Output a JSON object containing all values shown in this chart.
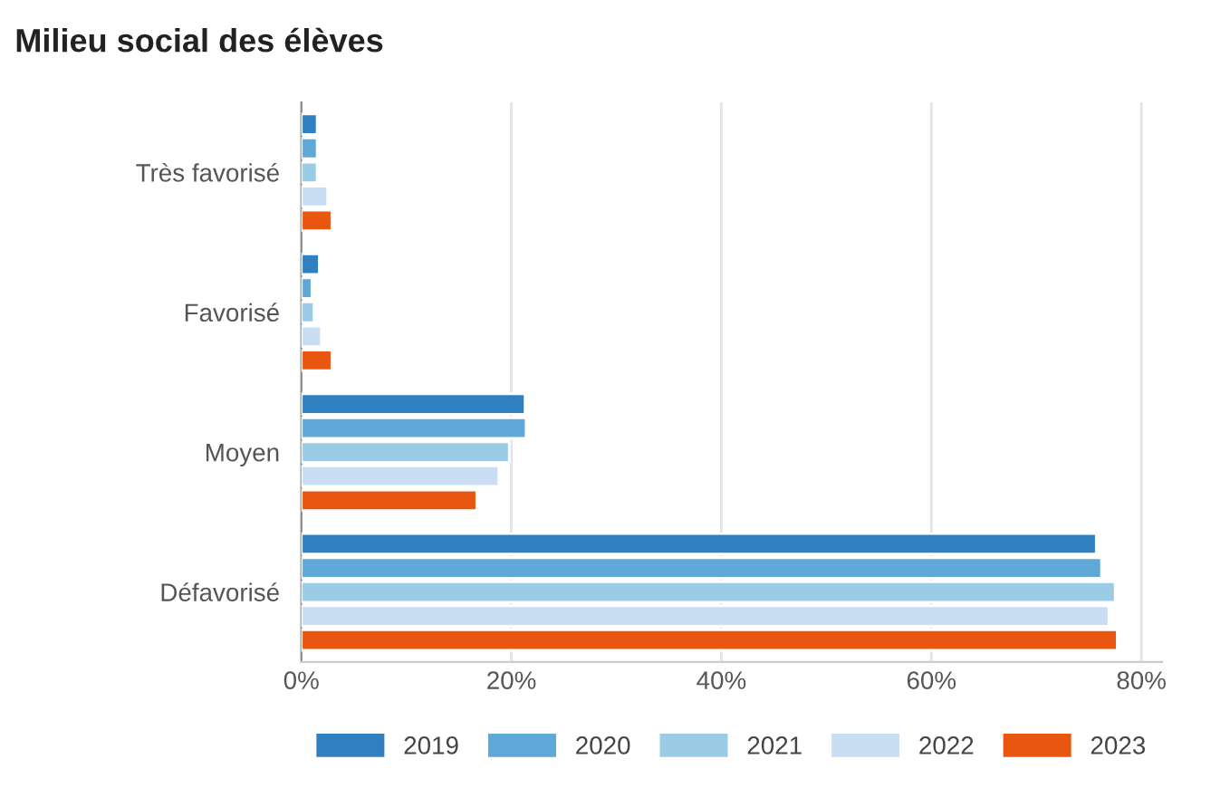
{
  "chart_data": {
    "type": "bar",
    "orientation": "horizontal",
    "title": "Milieu social des élèves",
    "categories": [
      "Très favorisé",
      "Favorisé",
      "Moyen",
      "Défavorisé"
    ],
    "series": [
      {
        "name": "2019",
        "color": "#2f7fc1",
        "values": [
          1.5,
          1.7,
          21.3,
          75.7
        ]
      },
      {
        "name": "2020",
        "color": "#5fa8d8",
        "values": [
          1.5,
          1.0,
          21.4,
          76.2
        ]
      },
      {
        "name": "2021",
        "color": "#9ccbe6",
        "values": [
          1.5,
          1.2,
          19.8,
          77.5
        ]
      },
      {
        "name": "2022",
        "color": "#c9def3",
        "values": [
          2.5,
          1.9,
          18.8,
          76.9
        ]
      },
      {
        "name": "2023",
        "color": "#e8560f",
        "values": [
          2.9,
          2.9,
          16.7,
          77.7
        ]
      }
    ],
    "xlim": [
      0,
      82
    ],
    "xticks": [
      {
        "value": 0,
        "label": "0%"
      },
      {
        "value": 20,
        "label": "20%"
      },
      {
        "value": 40,
        "label": "40%"
      },
      {
        "value": 60,
        "label": "60%"
      },
      {
        "value": 80,
        "label": "80%"
      }
    ],
    "grid": "x",
    "legend": "bottom"
  }
}
